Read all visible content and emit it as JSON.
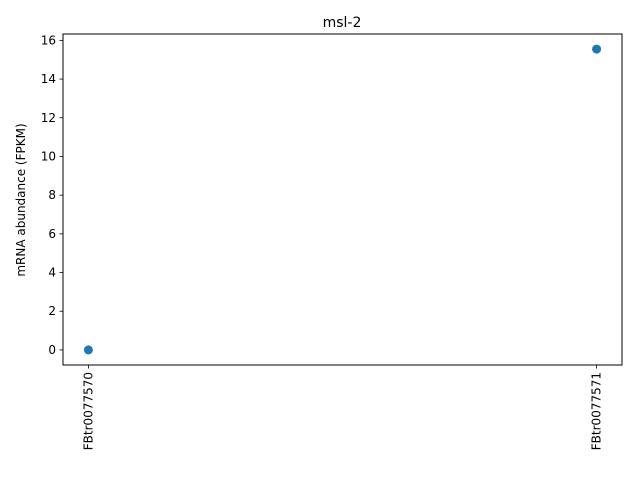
{
  "chart_data": {
    "type": "scatter",
    "title": "msl-2",
    "xlabel": "",
    "ylabel": "mRNA abundance (FPKM)",
    "categories": [
      "FBtr0077570",
      "FBtr0077571"
    ],
    "values": [
      0.0,
      15.55
    ],
    "ylim": [
      -0.78,
      16.33
    ],
    "yticks": [
      "0",
      "2",
      "4",
      "6",
      "8",
      "10",
      "12",
      "14",
      "16"
    ],
    "grid": false,
    "marker_color": "#1f77b4"
  }
}
